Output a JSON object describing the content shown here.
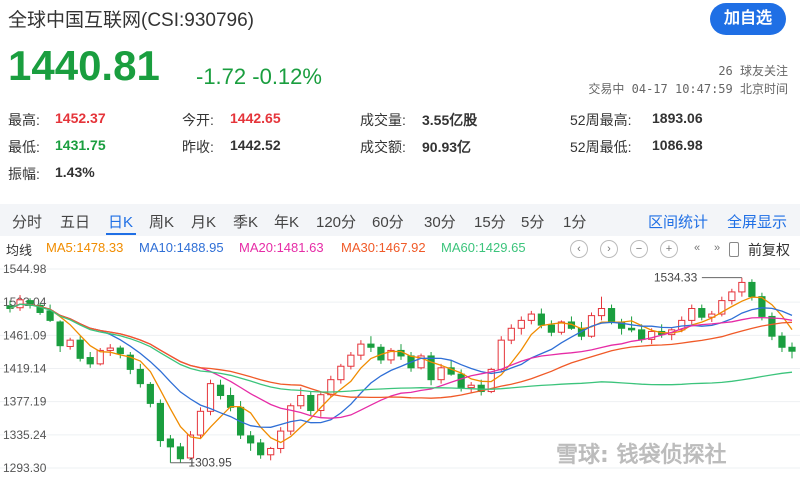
{
  "header": {
    "title": "全球中国互联网(CSI:930796)",
    "price": "1440.81",
    "change": "-1.72 -0.12%",
    "follow_button": "加自选",
    "followers": "26 球友关注",
    "status": "交易中 04-17 10:47:59 北京时间"
  },
  "stats": [
    {
      "label": "最高:",
      "value": "1452.37",
      "color": "red"
    },
    {
      "label": "今开:",
      "value": "1442.65",
      "color": "red"
    },
    {
      "label": "成交量:",
      "value": "3.55亿股",
      "color": "dark"
    },
    {
      "label": "52周最高:",
      "value": "1893.06",
      "color": "dark"
    },
    {
      "label": "最低:",
      "value": "1431.75",
      "color": "green"
    },
    {
      "label": "昨收:",
      "value": "1442.52",
      "color": "dark"
    },
    {
      "label": "成交额:",
      "value": "90.93亿",
      "color": "dark"
    },
    {
      "label": "52周最低:",
      "value": "1086.98",
      "color": "dark"
    },
    {
      "label": "振幅:",
      "value": "1.43%",
      "color": "dark"
    }
  ],
  "tabs": [
    "分时",
    "五日",
    "日K",
    "周K",
    "月K",
    "季K",
    "年K",
    "120分",
    "60分",
    "30分",
    "15分",
    "5分",
    "1分"
  ],
  "active_tab": "日K",
  "tab_actions": [
    "区间统计",
    "全屏显示"
  ],
  "ma": {
    "label": "均线",
    "items": [
      {
        "text": "MA5:1478.33",
        "color": "#f08c00"
      },
      {
        "text": "MA10:1488.95",
        "color": "#2f6fd6"
      },
      {
        "text": "MA20:1481.63",
        "color": "#e62ca6"
      },
      {
        "text": "MA30:1467.92",
        "color": "#f05a28"
      },
      {
        "text": "MA60:1429.65",
        "color": "#3cc47c"
      }
    ]
  },
  "toolbar": {
    "icons": [
      "left-arrow-icon",
      "right-arrow-icon",
      "zoom-out-icon",
      "zoom-in-icon",
      "prev-icon",
      "next-icon"
    ],
    "glyphs": [
      "‹",
      "›",
      "−",
      "+",
      "«",
      "»"
    ],
    "restore_label": "前复权"
  },
  "watermark": "雪球: 钱袋侦探社",
  "chart_data": {
    "type": "candlestick",
    "y_ticks": [
      "1544.98",
      "1503.04",
      "1461.09",
      "1419.14",
      "1377.19",
      "1335.24",
      "1293.30"
    ],
    "ylim": [
      1293.3,
      1544.98
    ],
    "annotations": [
      {
        "text": "1534.33",
        "kind": "max"
      },
      {
        "text": "1303.95",
        "kind": "min"
      }
    ],
    "up_color": "#e5343a",
    "down_color": "#1a9e3f",
    "candles": [
      [
        1498,
        1505,
        1490,
        1495
      ],
      [
        1496,
        1512,
        1492,
        1506
      ],
      [
        1505,
        1508,
        1495,
        1499
      ],
      [
        1499,
        1502,
        1487,
        1490
      ],
      [
        1492,
        1500,
        1478,
        1480
      ],
      [
        1478,
        1480,
        1440,
        1448
      ],
      [
        1447,
        1458,
        1443,
        1455
      ],
      [
        1455,
        1460,
        1428,
        1432
      ],
      [
        1433,
        1440,
        1420,
        1425
      ],
      [
        1425,
        1445,
        1423,
        1442
      ],
      [
        1442,
        1450,
        1435,
        1445
      ],
      [
        1445,
        1448,
        1432,
        1438
      ],
      [
        1436,
        1440,
        1412,
        1418
      ],
      [
        1418,
        1425,
        1395,
        1400
      ],
      [
        1399,
        1402,
        1370,
        1375
      ],
      [
        1375,
        1380,
        1320,
        1328
      ],
      [
        1330,
        1335,
        1300,
        1320
      ],
      [
        1320,
        1325,
        1300,
        1305
      ],
      [
        1306,
        1340,
        1304,
        1335
      ],
      [
        1335,
        1370,
        1330,
        1365
      ],
      [
        1365,
        1405,
        1360,
        1400
      ],
      [
        1398,
        1405,
        1380,
        1385
      ],
      [
        1385,
        1395,
        1365,
        1370
      ],
      [
        1370,
        1378,
        1330,
        1335
      ],
      [
        1334,
        1340,
        1315,
        1325
      ],
      [
        1325,
        1330,
        1305,
        1310
      ],
      [
        1310,
        1320,
        1303,
        1318
      ],
      [
        1318,
        1345,
        1312,
        1340
      ],
      [
        1340,
        1375,
        1335,
        1372
      ],
      [
        1372,
        1395,
        1368,
        1385
      ],
      [
        1385,
        1390,
        1360,
        1366
      ],
      [
        1366,
        1390,
        1358,
        1386
      ],
      [
        1386,
        1410,
        1383,
        1405
      ],
      [
        1405,
        1425,
        1400,
        1422
      ],
      [
        1422,
        1440,
        1418,
        1436
      ],
      [
        1436,
        1455,
        1430,
        1450
      ],
      [
        1450,
        1460,
        1440,
        1446
      ],
      [
        1446,
        1450,
        1425,
        1430
      ],
      [
        1430,
        1445,
        1425,
        1442
      ],
      [
        1442,
        1450,
        1430,
        1435
      ],
      [
        1435,
        1440,
        1415,
        1420
      ],
      [
        1420,
        1438,
        1418,
        1435
      ],
      [
        1435,
        1440,
        1398,
        1405
      ],
      [
        1405,
        1425,
        1400,
        1420
      ],
      [
        1420,
        1430,
        1410,
        1412
      ],
      [
        1412,
        1418,
        1390,
        1395
      ],
      [
        1395,
        1402,
        1388,
        1398
      ],
      [
        1398,
        1405,
        1385,
        1390
      ],
      [
        1390,
        1420,
        1388,
        1418
      ],
      [
        1418,
        1460,
        1415,
        1455
      ],
      [
        1455,
        1475,
        1450,
        1470
      ],
      [
        1470,
        1485,
        1462,
        1480
      ],
      [
        1480,
        1492,
        1475,
        1488
      ],
      [
        1488,
        1495,
        1470,
        1474
      ],
      [
        1474,
        1480,
        1460,
        1465
      ],
      [
        1465,
        1480,
        1462,
        1478
      ],
      [
        1478,
        1485,
        1468,
        1470
      ],
      [
        1470,
        1478,
        1455,
        1460
      ],
      [
        1460,
        1490,
        1458,
        1486
      ],
      [
        1486,
        1510,
        1480,
        1495
      ],
      [
        1495,
        1500,
        1475,
        1478
      ],
      [
        1478,
        1482,
        1462,
        1470
      ],
      [
        1470,
        1485,
        1465,
        1468
      ],
      [
        1468,
        1475,
        1452,
        1456
      ],
      [
        1456,
        1470,
        1450,
        1466
      ],
      [
        1466,
        1475,
        1458,
        1462
      ],
      [
        1462,
        1470,
        1455,
        1468
      ],
      [
        1468,
        1485,
        1465,
        1480
      ],
      [
        1480,
        1500,
        1475,
        1495
      ],
      [
        1495,
        1500,
        1480,
        1484
      ],
      [
        1484,
        1492,
        1478,
        1488
      ],
      [
        1488,
        1510,
        1485,
        1505
      ],
      [
        1505,
        1520,
        1500,
        1516
      ],
      [
        1516,
        1534,
        1510,
        1528
      ],
      [
        1528,
        1532,
        1505,
        1510
      ],
      [
        1510,
        1515,
        1480,
        1485
      ],
      [
        1485,
        1490,
        1455,
        1460
      ],
      [
        1460,
        1465,
        1440,
        1446
      ],
      [
        1446,
        1452,
        1432,
        1441
      ]
    ]
  }
}
